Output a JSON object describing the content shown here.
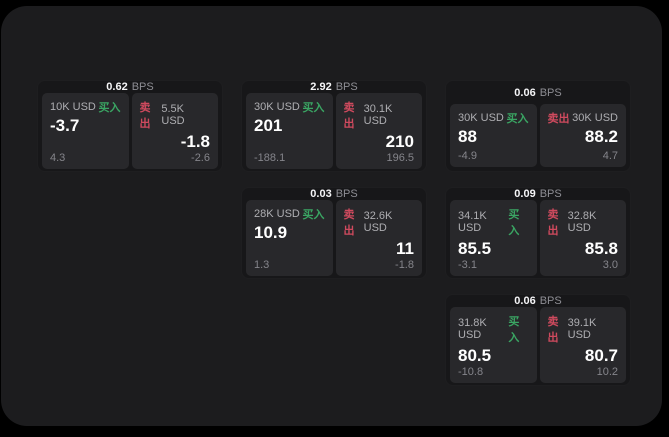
{
  "labels": {
    "bps": "BPS",
    "buy": "买入",
    "sell": "卖出"
  },
  "colors": {
    "outer_bg": "#000000",
    "panel_bg": "#1c1c1e",
    "card_bg": "#171719",
    "subpanel_bg": "#28282b",
    "buy_green": "#3aa563",
    "sell_red": "#cf4a5e"
  },
  "cards": [
    {
      "bps": "0.62",
      "buy": {
        "notional": "10K USD",
        "price": "-3.7",
        "delta": "4.3"
      },
      "sell": {
        "notional": "5.5K USD",
        "price": "-1.8",
        "delta": "-2.6"
      }
    },
    {
      "bps": "2.92",
      "buy": {
        "notional": "30K USD",
        "price": "201",
        "delta": "-188.1"
      },
      "sell": {
        "notional": "30.1K USD",
        "price": "210",
        "delta": "196.5"
      }
    },
    {
      "bps": "0.06",
      "buy": {
        "notional": "30K USD",
        "price": "88",
        "delta": "-4.9"
      },
      "sell": {
        "notional": "30K USD",
        "price": "88.2",
        "delta": "4.7"
      }
    },
    {
      "bps": "0.03",
      "buy": {
        "notional": "28K USD",
        "price": "10.9",
        "delta": "1.3"
      },
      "sell": {
        "notional": "32.6K USD",
        "price": "11",
        "delta": "-1.8"
      }
    },
    {
      "bps": "0.09",
      "buy": {
        "notional": "34.1K USD",
        "price": "85.5",
        "delta": "-3.1"
      },
      "sell": {
        "notional": "32.8K USD",
        "price": "85.8",
        "delta": "3.0"
      }
    },
    {
      "bps": "0.06",
      "buy": {
        "notional": "31.8K USD",
        "price": "80.5",
        "delta": "-10.8"
      },
      "sell": {
        "notional": "39.1K USD",
        "price": "80.7",
        "delta": "10.2"
      }
    }
  ]
}
